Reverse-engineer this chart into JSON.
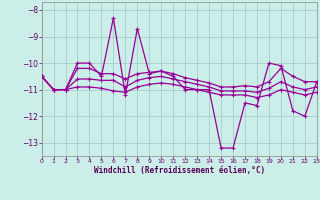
{
  "xlabel": "Windchill (Refroidissement éolien,°C)",
  "background_color": "#cceee8",
  "grid_color": "#aacccc",
  "line_color": "#990099",
  "xlim": [
    0,
    23
  ],
  "ylim": [
    -13.5,
    -7.7
  ],
  "yticks": [
    -13,
    -12,
    -11,
    -10,
    -9,
    -8
  ],
  "xticks": [
    0,
    1,
    2,
    3,
    4,
    5,
    6,
    7,
    8,
    9,
    10,
    11,
    12,
    13,
    14,
    15,
    16,
    17,
    18,
    19,
    20,
    21,
    22,
    23
  ],
  "series": [
    [
      -10.5,
      -11.0,
      -11.0,
      -10.0,
      -10.0,
      -10.5,
      -8.3,
      -11.2,
      -8.7,
      -10.4,
      -10.3,
      -10.5,
      -11.0,
      -11.0,
      -11.0,
      -13.2,
      -13.2,
      -11.5,
      -11.6,
      -10.0,
      -10.1,
      -11.8,
      -12.0,
      -10.7
    ],
    [
      -10.5,
      -11.0,
      -11.0,
      -10.2,
      -10.2,
      -10.4,
      -10.4,
      -10.6,
      -10.4,
      -10.35,
      -10.3,
      -10.4,
      -10.55,
      -10.65,
      -10.75,
      -10.9,
      -10.9,
      -10.85,
      -10.9,
      -10.7,
      -10.2,
      -10.5,
      -10.7,
      -10.7
    ],
    [
      -10.5,
      -11.0,
      -11.0,
      -10.6,
      -10.6,
      -10.65,
      -10.65,
      -10.9,
      -10.65,
      -10.55,
      -10.5,
      -10.6,
      -10.7,
      -10.8,
      -10.9,
      -11.05,
      -11.05,
      -11.05,
      -11.1,
      -10.95,
      -10.7,
      -10.9,
      -11.0,
      -10.9
    ],
    [
      -10.5,
      -11.0,
      -11.0,
      -10.9,
      -10.9,
      -10.95,
      -11.05,
      -11.1,
      -10.9,
      -10.8,
      -10.75,
      -10.8,
      -10.9,
      -11.0,
      -11.1,
      -11.2,
      -11.2,
      -11.2,
      -11.3,
      -11.2,
      -11.0,
      -11.1,
      -11.2,
      -11.1
    ]
  ]
}
